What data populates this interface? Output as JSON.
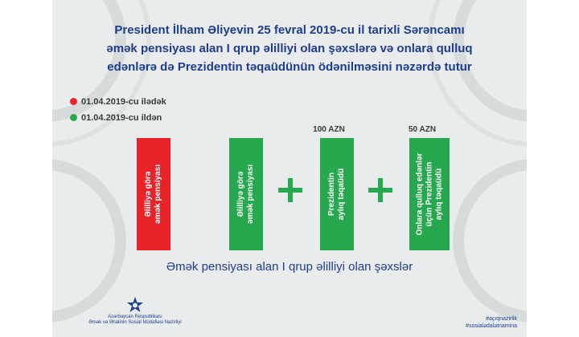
{
  "title_lines": [
    "President İlham Əliyevin 25 fevral 2019-cu il tarixli Sərəncamı",
    "əmək pensiyası alan I qrup əlilliyi olan şəxslərə və onlara qulluq",
    "edənlərə də Prezidentin təqaüdünün ödənilməsini nəzərdə tutur"
  ],
  "legend": [
    {
      "label": "01.04.2019-cu ilədək",
      "color": "#e8232a"
    },
    {
      "label": "01.04.2019-cu ildən",
      "color": "#28a84e"
    }
  ],
  "bars": [
    {
      "lines": [
        "Əlilliyə görə",
        "əmək pensiyası"
      ],
      "color": "#e8232a",
      "amount": ""
    },
    {
      "lines": [
        "Əlilliyə görə",
        "əmək pensiyası"
      ],
      "color": "#28a84e",
      "amount": ""
    },
    {
      "lines": [
        "Prezidentin",
        "aylıq təqaüdü"
      ],
      "color": "#28a84e",
      "amount": "100 AZN"
    },
    {
      "lines": [
        "Onlara qulluq edənlər",
        "üçün Prezidentin",
        "aylıq təqaüdü"
      ],
      "color": "#28a84e",
      "amount": "50 AZN"
    }
  ],
  "caption": "Əmək pensiyası alan I qrup əlilliyi olan şəxslər",
  "logo": {
    "line1": "Azərbaycan Respublikası",
    "line2": "Əmək və Əhalinin Sosial Müdafiəsi Nazirliyi",
    "icon": "ministry-emblem"
  },
  "hashtags": [
    "#açıqnazirlik",
    "#sosialədalətnamina"
  ],
  "colors": {
    "title": "#1f3c8f",
    "background": "#e9ecec"
  }
}
